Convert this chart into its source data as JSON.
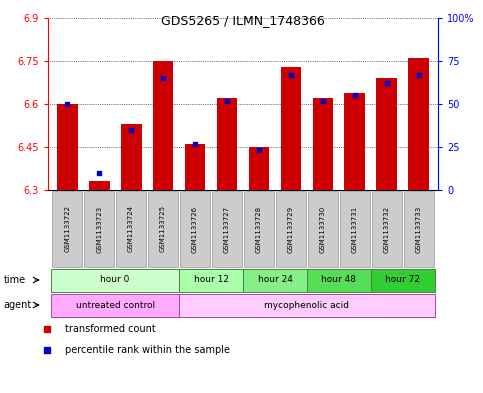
{
  "title": "GDS5265 / ILMN_1748366",
  "samples": [
    "GSM1133722",
    "GSM1133723",
    "GSM1133724",
    "GSM1133725",
    "GSM1133726",
    "GSM1133727",
    "GSM1133728",
    "GSM1133729",
    "GSM1133730",
    "GSM1133731",
    "GSM1133732",
    "GSM1133733"
  ],
  "transformed_count": [
    6.6,
    6.33,
    6.53,
    6.75,
    6.46,
    6.62,
    6.45,
    6.73,
    6.62,
    6.64,
    6.69,
    6.76
  ],
  "percentile_rank": [
    50,
    10,
    35,
    65,
    27,
    52,
    23,
    67,
    52,
    55,
    62,
    67
  ],
  "ymin": 6.3,
  "ymax": 6.9,
  "yticks": [
    6.3,
    6.45,
    6.6,
    6.75,
    6.9
  ],
  "ytick_labels": [
    "6.3",
    "6.45",
    "6.6",
    "6.75",
    "6.9"
  ],
  "right_yticks": [
    0,
    25,
    50,
    75,
    100
  ],
  "right_ytick_labels": [
    "0",
    "25",
    "50",
    "75",
    "100%"
  ],
  "bar_color": "#cc0000",
  "percentile_color": "#0000cc",
  "time_groups": [
    {
      "label": "hour 0",
      "start": 0,
      "end": 4,
      "color": "#ccffcc"
    },
    {
      "label": "hour 12",
      "start": 4,
      "end": 6,
      "color": "#aaffaa"
    },
    {
      "label": "hour 24",
      "start": 6,
      "end": 8,
      "color": "#88ee88"
    },
    {
      "label": "hour 48",
      "start": 8,
      "end": 10,
      "color": "#55dd55"
    },
    {
      "label": "hour 72",
      "start": 10,
      "end": 12,
      "color": "#33cc33"
    }
  ],
  "agent_groups": [
    {
      "label": "untreated control",
      "start": 0,
      "end": 4,
      "color": "#ffaaff"
    },
    {
      "label": "mycophenolic acid",
      "start": 4,
      "end": 12,
      "color": "#ffccff"
    }
  ],
  "legend_items": [
    {
      "label": "transformed count",
      "color": "#cc0000"
    },
    {
      "label": "percentile rank within the sample",
      "color": "#0000cc"
    }
  ],
  "grid_color": "black",
  "bg_color": "white",
  "sample_bg_color": "#cccccc",
  "fig_w": 4.83,
  "fig_h": 3.93,
  "dpi": 100
}
